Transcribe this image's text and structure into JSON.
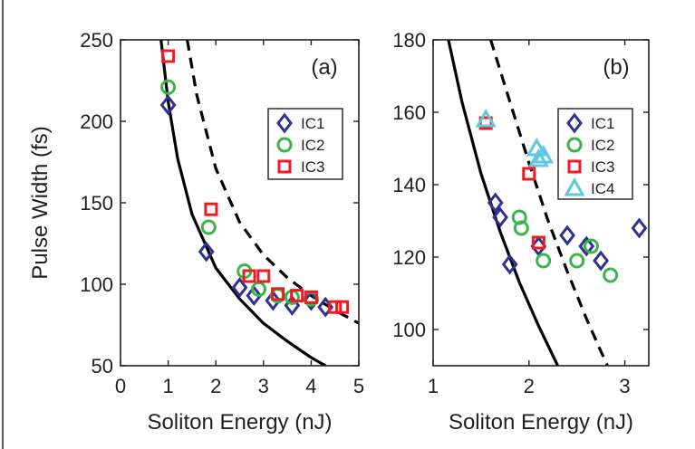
{
  "chart_data": [
    {
      "type": "scatter",
      "panel_label": "(a)",
      "xlabel": "Soliton Energy (nJ)",
      "ylabel": "Pulse Width (fs)",
      "xlim": [
        0,
        5
      ],
      "ylim": [
        50,
        250
      ],
      "xticks": [
        "0",
        "1",
        "2",
        "3",
        "4",
        "5"
      ],
      "yticks": [
        "50",
        "100",
        "150",
        "200",
        "250"
      ],
      "legend_position": "top-right",
      "series": [
        {
          "name": "IC1",
          "marker": "diamond",
          "color": "#2e3192",
          "points": [
            [
              1.0,
              210
            ],
            [
              1.8,
              120
            ],
            [
              2.5,
              98
            ],
            [
              2.8,
              93
            ],
            [
              3.2,
              90
            ],
            [
              3.6,
              87
            ],
            [
              4.0,
              90
            ],
            [
              4.3,
              86
            ]
          ]
        },
        {
          "name": "IC2",
          "marker": "circle",
          "color": "#39b54a",
          "points": [
            [
              1.0,
              221
            ],
            [
              1.85,
              135
            ],
            [
              2.6,
              108
            ],
            [
              2.9,
              97
            ],
            [
              3.3,
              93
            ],
            [
              3.6,
              92
            ],
            [
              4.0,
              91
            ]
          ]
        },
        {
          "name": "IC3",
          "marker": "square",
          "color": "#ed1c24",
          "points": [
            [
              1.0,
              240
            ],
            [
              1.9,
              146
            ],
            [
              2.7,
              105
            ],
            [
              3.0,
              105
            ],
            [
              3.3,
              94
            ],
            [
              3.7,
              93
            ],
            [
              4.0,
              92
            ],
            [
              4.5,
              86
            ],
            [
              4.65,
              86
            ]
          ]
        }
      ],
      "lines": [
        {
          "style": "solid",
          "points": [
            [
              0.85,
              250
            ],
            [
              1.0,
              212
            ],
            [
              1.2,
              177
            ],
            [
              1.5,
              143
            ],
            [
              2.0,
              110
            ],
            [
              2.5,
              91
            ],
            [
              3.0,
              76
            ],
            [
              3.5,
              65
            ],
            [
              4.0,
              55
            ],
            [
              4.3,
              50
            ]
          ]
        },
        {
          "style": "dashed",
          "points": [
            [
              1.4,
              250
            ],
            [
              1.6,
              216
            ],
            [
              2.0,
              171
            ],
            [
              2.5,
              138
            ],
            [
              3.0,
              118
            ],
            [
              3.5,
              104
            ],
            [
              4.0,
              93
            ],
            [
              4.5,
              84
            ],
            [
              5.0,
              76
            ]
          ]
        }
      ]
    },
    {
      "type": "scatter",
      "panel_label": "(b)",
      "xlabel": "Soliton Energy (nJ)",
      "ylabel": "",
      "xlim": [
        1,
        3.25
      ],
      "ylim": [
        90,
        180
      ],
      "xticks": [
        "1",
        "2",
        "3"
      ],
      "yticks": [
        "100",
        "120",
        "140",
        "160",
        "180"
      ],
      "legend_position": "top-right",
      "series": [
        {
          "name": "IC1",
          "marker": "diamond",
          "color": "#2e3192",
          "points": [
            [
              1.65,
              135
            ],
            [
              1.7,
              131
            ],
            [
              1.8,
              118
            ],
            [
              2.1,
              123
            ],
            [
              2.4,
              126
            ],
            [
              2.6,
              123
            ],
            [
              2.75,
              119
            ],
            [
              3.15,
              128
            ]
          ]
        },
        {
          "name": "IC2",
          "marker": "circle",
          "color": "#39b54a",
          "points": [
            [
              1.9,
              131
            ],
            [
              1.92,
              128
            ],
            [
              2.15,
              119
            ],
            [
              2.5,
              119
            ],
            [
              2.65,
              123
            ],
            [
              2.85,
              115
            ]
          ]
        },
        {
          "name": "IC3",
          "marker": "square",
          "color": "#ed1c24",
          "points": [
            [
              1.55,
              157
            ],
            [
              2.0,
              143
            ],
            [
              2.1,
              124
            ]
          ]
        },
        {
          "name": "IC4",
          "marker": "triangle",
          "color": "#5ec8e0",
          "points": [
            [
              1.55,
              158
            ],
            [
              2.08,
              150
            ],
            [
              2.1,
              147
            ],
            [
              2.15,
              148
            ]
          ]
        }
      ],
      "lines": [
        {
          "style": "solid",
          "points": [
            [
              1.16,
              180
            ],
            [
              1.3,
              163
            ],
            [
              1.5,
              143
            ],
            [
              1.7,
              127
            ],
            [
              1.9,
              113
            ],
            [
              2.1,
              101
            ],
            [
              2.3,
              90
            ]
          ]
        },
        {
          "style": "dashed",
          "points": [
            [
              1.6,
              180
            ],
            [
              1.8,
              163
            ],
            [
              2.0,
              146
            ],
            [
              2.2,
              130
            ],
            [
              2.4,
              116
            ],
            [
              2.6,
              103
            ],
            [
              2.75,
              94
            ],
            [
              2.82,
              90
            ]
          ]
        }
      ]
    }
  ]
}
